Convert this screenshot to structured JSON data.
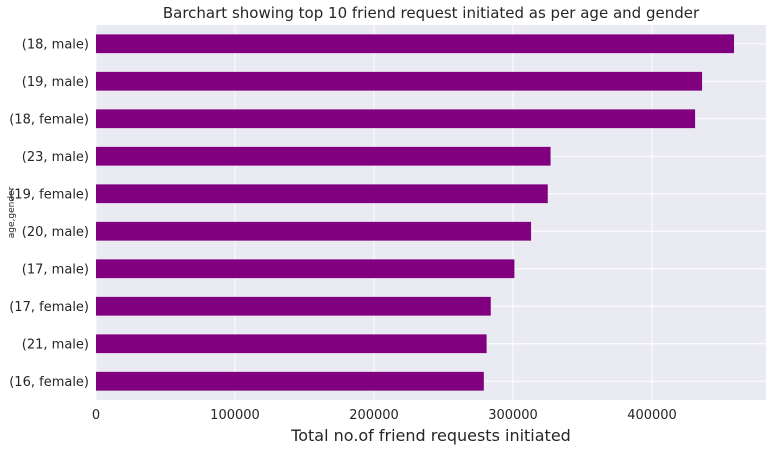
{
  "chart_data": {
    "type": "bar",
    "orientation": "horizontal",
    "title": "Barchart showing top 10 friend request initiated as per age and gender",
    "xlabel": "Total no.of friend requests initiated",
    "ylabel": "age,gender",
    "categories": [
      "(18, male)",
      "(19, male)",
      "(18, female)",
      "(23, male)",
      "(19, female)",
      "(20, male)",
      "(17, male)",
      "(17, female)",
      "(21, male)",
      "(16, female)"
    ],
    "values": [
      459000,
      436000,
      431000,
      327000,
      325000,
      313000,
      301000,
      284000,
      281000,
      279000
    ],
    "xlim": [
      0,
      482000
    ],
    "xticks": [
      0,
      100000,
      200000,
      300000,
      400000
    ],
    "xtick_labels": [
      "0",
      "100000",
      "200000",
      "300000",
      "400000"
    ],
    "grid": true,
    "colors": {
      "bar": "#800080",
      "background": "#eaeaf2",
      "grid": "#ffffff"
    }
  }
}
